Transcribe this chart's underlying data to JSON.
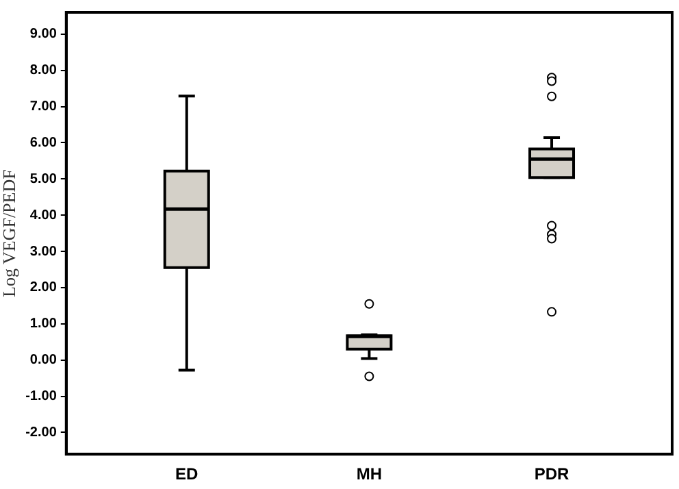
{
  "chart_data": {
    "type": "box",
    "ylabel": "Log VEGF/PEDF",
    "categories": [
      "ED",
      "MH",
      "PDR"
    ],
    "boxes": [
      {
        "low": -0.28,
        "q1": 2.55,
        "median": 4.17,
        "q3": 5.22,
        "high": 7.29
      },
      {
        "low": 0.04,
        "q1": 0.3,
        "median": 0.65,
        "q3": 0.67,
        "high": 0.7,
        "outliers": [
          1.55,
          -0.45
        ]
      },
      {
        "low": 5.04,
        "q1": 5.04,
        "median": 5.55,
        "q3": 5.83,
        "high": 6.14,
        "outliers": [
          7.8,
          7.7,
          7.28,
          3.71,
          3.47,
          3.35,
          1.33
        ]
      }
    ],
    "color": "#d4d0c8",
    "ylim": [
      -2.6,
      9.6
    ],
    "yticks": [
      {
        "value": -2,
        "label": "-2.00"
      },
      {
        "value": -1,
        "label": "-1.00"
      },
      {
        "value": 0,
        "label": "0.00"
      },
      {
        "value": 1,
        "label": "1.00"
      },
      {
        "value": 2,
        "label": "2.00"
      },
      {
        "value": 3,
        "label": "3.00"
      },
      {
        "value": 4,
        "label": "4.00"
      },
      {
        "value": 5,
        "label": "5.00"
      },
      {
        "value": 6,
        "label": "6.00"
      },
      {
        "value": 7,
        "label": "7.00"
      },
      {
        "value": 8,
        "label": "8.00"
      },
      {
        "value": 9,
        "label": "9.00"
      }
    ],
    "grid": false,
    "legend": false
  }
}
